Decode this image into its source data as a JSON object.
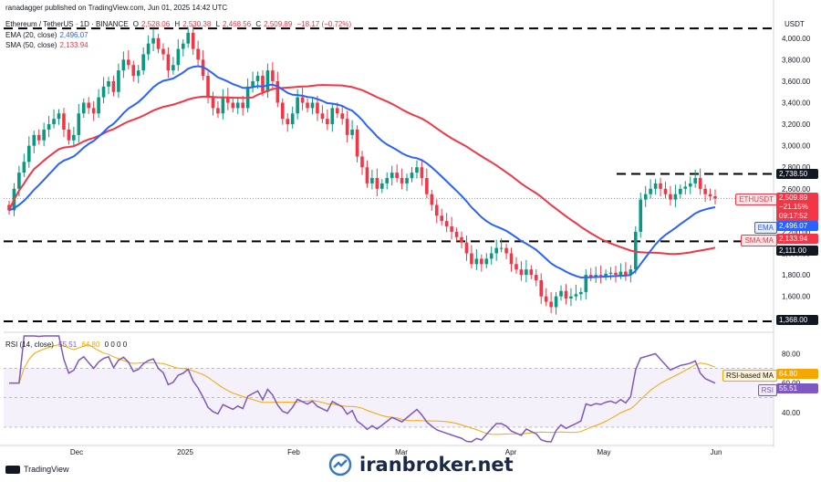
{
  "header": {
    "published": "ranadagger published on TradingView.com, Jun 01, 2025 14:42 UTC",
    "symbol": "Ethereum / TetherUS · 1D · BINANCE",
    "o_label": "O",
    "o": "2,528.06",
    "h_label": "H",
    "h": "2,530.38",
    "l_label": "L",
    "l": "2,468.56",
    "c_label": "C",
    "c": "2,509.89",
    "change": "−18.17 (−0.72%)",
    "ema_label": "EMA (20, close)",
    "ema_value": "2,496.07",
    "sma_label": "SMA (50, close)",
    "sma_value": "2,133.94"
  },
  "rsi_header": {
    "label": "RSI (14, close)",
    "rsi": "55.51",
    "rsi_ma": "64.80",
    "zeros": "0 0 0 0"
  },
  "currency": "USDT",
  "colors": {
    "up": "#089981",
    "down": "#f23645",
    "ema": "#2962ff",
    "sma": "#f23645",
    "rsi": "#7e57c2",
    "rsi_ma": "#f7a600",
    "level": "#000000"
  },
  "price_axis_ticks": [
    "4,000.00",
    "3,800.00",
    "3,600.00",
    "3,400.00",
    "3,200.00",
    "3,000.00",
    "2,800.00",
    "2,600.00",
    "2,400.00",
    "2,200.00",
    "2,000.00",
    "1,800.00",
    "1,600.00",
    "1,400.00"
  ],
  "rsi_axis_ticks": [
    "80.00",
    "60.00",
    "40.00"
  ],
  "time_axis": [
    "Dec",
    "2025",
    "Feb",
    "Mar",
    "Apr",
    "May",
    "Jun"
  ],
  "tags": {
    "level_2738": "2,738.50",
    "last_name": "ETHUSDT",
    "last_price": "2,509.89",
    "last_change": "−21.15%",
    "countdown": "09:17:52",
    "ema_name": "EMA",
    "ema_value": "2,496.07",
    "sma_name": "SMA:MA",
    "sma_value": "2,133.94",
    "level_2111": "2,111.00",
    "level_1368": "1,368.00",
    "rsi_ma_name": "RSI-based MA",
    "rsi_ma_value": "64.80",
    "rsi_name": "RSI",
    "rsi_value": "55.51"
  },
  "footer": {
    "brand": "TradingView",
    "watermark": "iranbroker.net"
  },
  "chart_data": {
    "type": "candlestick",
    "symbol": "ETHUSDT",
    "interval": "1D",
    "ylim": [
      1300,
      4100
    ],
    "horizontal_levels": [
      4090,
      2738.5,
      2111,
      1368
    ],
    "level_labels": [
      "",
      "2,738.50",
      "2,111.00",
      "1,368.00"
    ],
    "x_range": [
      "2024-11-04",
      "2025-06-01"
    ],
    "candles_close": [
      2400,
      2600,
      2750,
      2850,
      3000,
      3100,
      3050,
      3150,
      3200,
      3250,
      3300,
      3150,
      3050,
      3100,
      3300,
      3400,
      3350,
      3300,
      3450,
      3550,
      3600,
      3500,
      3700,
      3800,
      3750,
      3650,
      3700,
      3850,
      3950,
      4000,
      3900,
      3850,
      3700,
      3750,
      3900,
      3950,
      4050,
      3900,
      3800,
      3650,
      3450,
      3350,
      3300,
      3450,
      3400,
      3350,
      3400,
      3350,
      3550,
      3600,
      3650,
      3500,
      3700,
      3600,
      3400,
      3250,
      3200,
      3300,
      3450,
      3400,
      3350,
      3400,
      3300,
      3250,
      3200,
      3350,
      3300,
      3250,
      3100,
      3150,
      2900,
      2800,
      2650,
      2700,
      2600,
      2650,
      2700,
      2750,
      2700,
      2650,
      2700,
      2750,
      2800,
      2700,
      2550,
      2450,
      2350,
      2300,
      2250,
      2200,
      2150,
      2100,
      2000,
      1900,
      1950,
      1900,
      1950,
      2000,
      2050,
      2050,
      2000,
      1900,
      1850,
      1800,
      1850,
      1800,
      1750,
      1600,
      1550,
      1500,
      1600,
      1650,
      1580,
      1600,
      1620,
      1640,
      1800,
      1780,
      1800,
      1790,
      1810,
      1820,
      1800,
      1830,
      1800,
      1850,
      2200,
      2500,
      2550,
      2600,
      2650,
      2600,
      2550,
      2500,
      2550,
      2600,
      2620,
      2650,
      2700,
      2600,
      2550,
      2530,
      2509.89
    ],
    "ema20_last": 2496.07,
    "sma50_last": 2133.94,
    "rsi": {
      "last": 55.51,
      "ma_last": 64.8,
      "upper": 70,
      "mid": 50,
      "lower": 30,
      "ylim": [
        20,
        92
      ]
    }
  }
}
